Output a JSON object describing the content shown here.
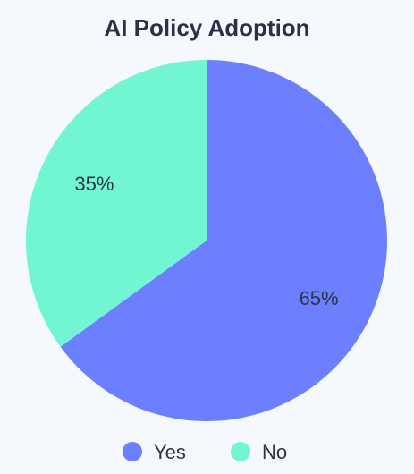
{
  "chart_data": {
    "type": "pie",
    "title": "AI Policy Adoption",
    "categories": [
      "Yes",
      "No"
    ],
    "values": [
      65,
      35
    ],
    "labels": [
      "65%",
      "35%"
    ],
    "colors": [
      "#6b7fff",
      "#72f5d3"
    ],
    "start_angle": "top (12 o'clock)",
    "direction": "clockwise",
    "legend": {
      "placement": "bottom-center",
      "items": [
        "Yes",
        "No"
      ]
    }
  }
}
